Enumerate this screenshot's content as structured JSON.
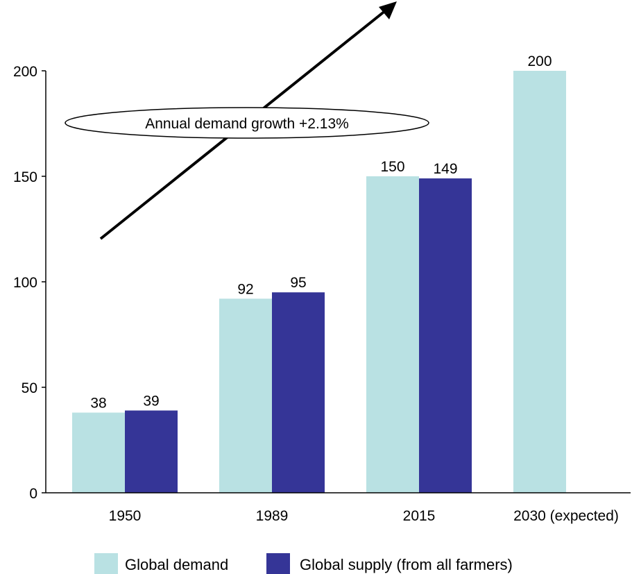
{
  "chart_data": {
    "type": "bar",
    "categories": [
      "1950",
      "1989",
      "2015",
      "2030 (expected)"
    ],
    "series": [
      {
        "name": "Global demand",
        "values": [
          38,
          92,
          150,
          200
        ],
        "labels": [
          "38",
          "92",
          "150",
          "200"
        ],
        "color": "#b9e1e3"
      },
      {
        "name": "Global supply (from all farmers)",
        "values": [
          39,
          95,
          149,
          null
        ],
        "labels": [
          "39",
          "95",
          "149",
          ""
        ],
        "color": "#353597"
      }
    ],
    "ylim": [
      0,
      200
    ],
    "yticks": [
      0,
      50,
      100,
      150,
      200
    ],
    "ytick_labels": [
      "0",
      "50",
      "100",
      "150",
      "200"
    ],
    "grid": false,
    "legend_position": "bottom",
    "annotation": {
      "text": "Annual demand growth +2.13%",
      "shape": "ellipse",
      "arrow": "upward diagonal arrow"
    }
  }
}
